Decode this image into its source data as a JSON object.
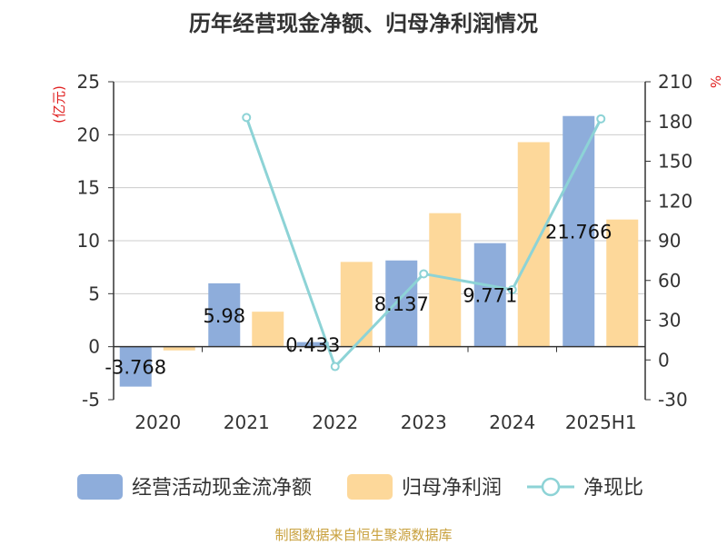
{
  "title": "历年经营现金净额、归母净利润情况",
  "source": "制图数据来自恒生聚源数据库",
  "colors": {
    "bar_cash": "#8eaddb",
    "bar_profit": "#fdd89a",
    "line_ratio": "#8dd3d6",
    "unit": "#e02020"
  },
  "chart_data": {
    "type": "bar",
    "categories": [
      "2020",
      "2021",
      "2022",
      "2023",
      "2024",
      "2025H1"
    ],
    "left_axis": {
      "unit": "(亿元)",
      "ylim": [
        -5,
        25
      ],
      "ticks": [
        -5,
        0,
        5,
        10,
        15,
        20,
        25
      ]
    },
    "right_axis": {
      "unit": "%",
      "ylim": [
        -30,
        210
      ],
      "ticks": [
        -30,
        0,
        30,
        60,
        90,
        120,
        150,
        180,
        210
      ]
    },
    "series": [
      {
        "name": "经营活动现金流净额",
        "type": "bar",
        "axis": "left",
        "values": [
          -3.768,
          5.98,
          0.433,
          8.137,
          9.771,
          21.766
        ],
        "labels": [
          "-3.768",
          "5.98",
          "0.433",
          "8.137",
          "9.771",
          "21.766"
        ]
      },
      {
        "name": "归母净利润",
        "type": "bar",
        "axis": "left",
        "values": [
          -0.35,
          3.3,
          8.0,
          12.6,
          19.3,
          12.0
        ]
      },
      {
        "name": "净现比",
        "type": "line",
        "axis": "right",
        "values": [
          null,
          183,
          -5,
          65,
          53,
          182
        ]
      }
    ],
    "grid": true,
    "legend_position": "bottom"
  }
}
